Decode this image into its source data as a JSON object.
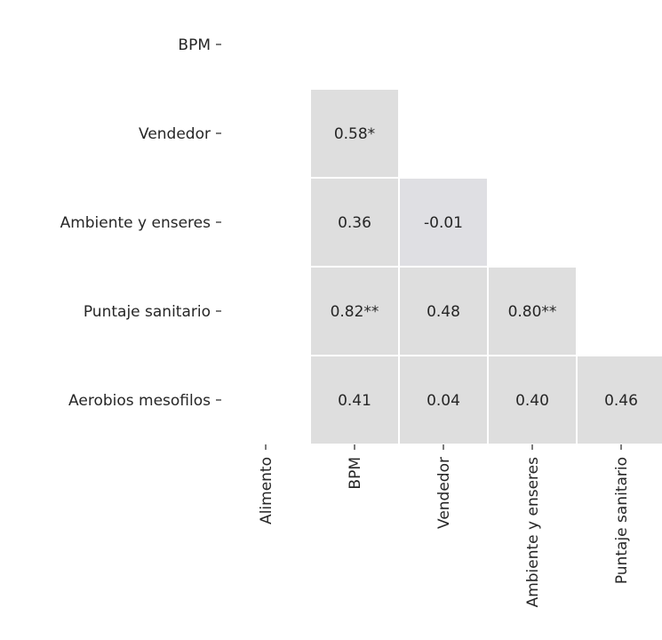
{
  "chart_data": {
    "type": "heatmap",
    "title": "",
    "xlabel": "",
    "ylabel": "",
    "rows": [
      "BPM",
      "Vendedor",
      "Ambiente y enseres",
      "Puntaje sanitario",
      "Aerobios mesofilos"
    ],
    "columns": [
      "Alimento",
      "BPM",
      "Vendedor",
      "Ambiente y enseres",
      "Puntaje sanitario"
    ],
    "cells": [
      {
        "row": "Vendedor",
        "column": "BPM",
        "value": 0.58,
        "label": "0.58*",
        "color": "#dedede"
      },
      {
        "row": "Ambiente y enseres",
        "column": "BPM",
        "value": 0.36,
        "label": "0.36",
        "color": "#dedede"
      },
      {
        "row": "Ambiente y enseres",
        "column": "Vendedor",
        "value": -0.01,
        "label": "-0.01",
        "color": "#dfdfe3"
      },
      {
        "row": "Puntaje sanitario",
        "column": "BPM",
        "value": 0.82,
        "label": "0.82**",
        "color": "#dedede"
      },
      {
        "row": "Puntaje sanitario",
        "column": "Vendedor",
        "value": 0.48,
        "label": "0.48",
        "color": "#dedede"
      },
      {
        "row": "Puntaje sanitario",
        "column": "Ambiente y enseres",
        "value": 0.8,
        "label": "0.80**",
        "color": "#dedede"
      },
      {
        "row": "Aerobios mesofilos",
        "column": "BPM",
        "value": 0.41,
        "label": "0.41",
        "color": "#dedede"
      },
      {
        "row": "Aerobios mesofilos",
        "column": "Vendedor",
        "value": 0.04,
        "label": "0.04",
        "color": "#dedede"
      },
      {
        "row": "Aerobios mesofilos",
        "column": "Ambiente y enseres",
        "value": 0.4,
        "label": "0.40",
        "color": "#dedede"
      },
      {
        "row": "Aerobios mesofilos",
        "column": "Puntaje sanitario",
        "value": 0.46,
        "label": "0.46",
        "color": "#dedede"
      }
    ],
    "grid": false,
    "colorbar": false
  }
}
